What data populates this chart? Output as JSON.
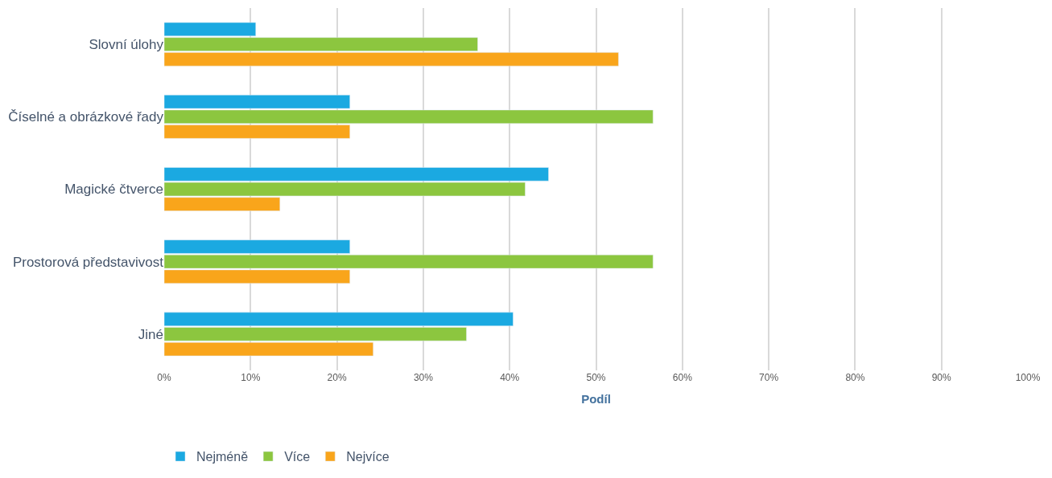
{
  "chart_data": {
    "type": "bar",
    "orientation": "horizontal",
    "xlabel": "Podíl",
    "categories": [
      "Slovní úlohy",
      "Číselné a obrázkové řady",
      "Magické čtverce",
      "Prostorová představivost",
      "Jiné"
    ],
    "series": [
      {
        "name": "Nejméně",
        "color": "#1ba9e1",
        "values": [
          10.6,
          21.5,
          44.5,
          21.5,
          40.4
        ]
      },
      {
        "name": "Více",
        "color": "#8cc63f",
        "values": [
          36.3,
          56.6,
          41.8,
          56.6,
          35.0
        ]
      },
      {
        "name": "Nejvíce",
        "color": "#f9a51b",
        "values": [
          52.6,
          21.5,
          13.4,
          21.5,
          24.2
        ]
      }
    ],
    "xlim": [
      0,
      100
    ],
    "xticks": [
      {
        "value": 0,
        "label": "0%"
      },
      {
        "value": 10,
        "label": "10%"
      },
      {
        "value": 20,
        "label": "20%"
      },
      {
        "value": 30,
        "label": "30%"
      },
      {
        "value": 40,
        "label": "40%"
      },
      {
        "value": 50,
        "label": "50%"
      },
      {
        "value": 60,
        "label": "60%"
      },
      {
        "value": 70,
        "label": "70%"
      },
      {
        "value": 80,
        "label": "80%"
      },
      {
        "value": 90,
        "label": "90%"
      },
      {
        "value": 100,
        "label": "100%"
      }
    ],
    "grid": "x",
    "legend": "bottom"
  }
}
